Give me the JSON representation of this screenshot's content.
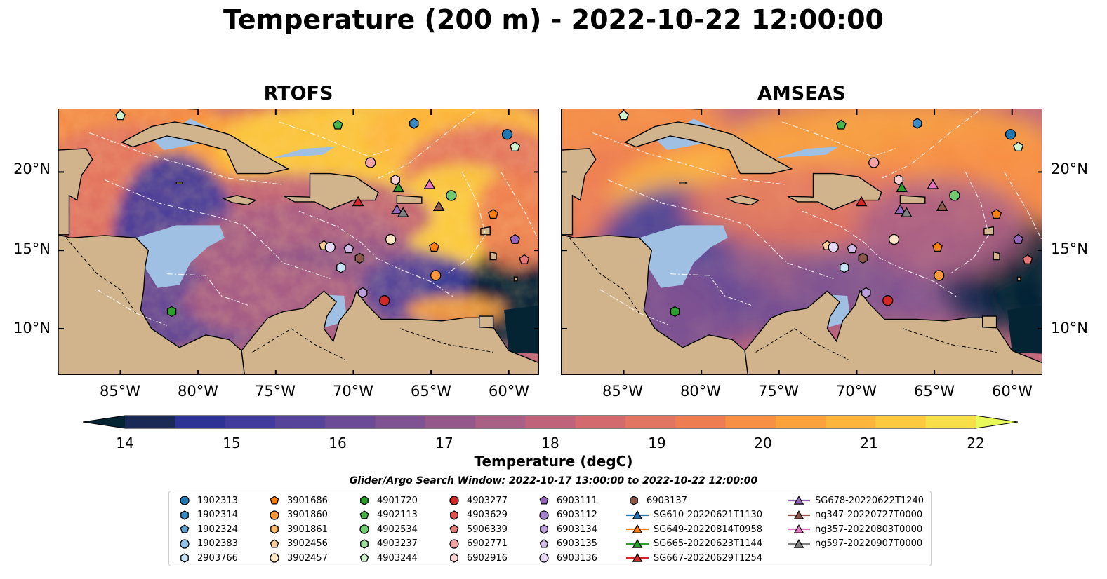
{
  "title": "Temperature (200 m) - 2022-10-22 12:00:00",
  "panels": [
    {
      "title": "RTOFS"
    },
    {
      "title": "AMSEAS"
    }
  ],
  "lat_ticks": [
    "20°N",
    "15°N",
    "10°N"
  ],
  "lon_ticks": [
    "85°W",
    "80°W",
    "75°W",
    "70°W",
    "65°W",
    "60°W"
  ],
  "map_extent": {
    "lon": [
      -89,
      -58
    ],
    "lat": [
      7,
      24
    ]
  },
  "colorbar": {
    "label": "Temperature (degC)",
    "ticks": [
      "14",
      "15",
      "16",
      "17",
      "18",
      "19",
      "20",
      "21",
      "22"
    ],
    "range": [
      14,
      22
    ],
    "extend": "both",
    "colormap": "thermal",
    "colors": [
      "#042333",
      "#1a2a55",
      "#2c3395",
      "#403b9c",
      "#55449a",
      "#6b4b95",
      "#7f5391",
      "#94598a",
      "#aa5f84",
      "#c0637a",
      "#d36b6e",
      "#e27462",
      "#ee7e52",
      "#f78f45",
      "#fba23d",
      "#fdb53c",
      "#fcc93f",
      "#f6df48",
      "#e8fa5b"
    ]
  },
  "search_window": "Glider/Argo Search Window: 2022-10-17 13:00:00 to 2022-10-22 12:00:00",
  "legend": [
    {
      "label": "1902313",
      "marker": "circle",
      "color": "#1f77b4"
    },
    {
      "label": "1902314",
      "marker": "hexagon",
      "color": "#3a8bc4"
    },
    {
      "label": "1902324",
      "marker": "pentagon",
      "color": "#5aa0d3"
    },
    {
      "label": "1902383",
      "marker": "circle",
      "color": "#8ec2e6"
    },
    {
      "label": "2903766",
      "marker": "hexagon",
      "color": "#c6e2f5"
    },
    {
      "label": "3901686",
      "marker": "pentagon",
      "color": "#ff7f0e"
    },
    {
      "label": "3901860",
      "marker": "circle",
      "color": "#fd9a3e"
    },
    {
      "label": "3901861",
      "marker": "hexagon",
      "color": "#fdb86a"
    },
    {
      "label": "3902456",
      "marker": "pentagon",
      "color": "#fdcf98"
    },
    {
      "label": "3902457",
      "marker": "circle",
      "color": "#fee5c6"
    },
    {
      "label": "4901720",
      "marker": "hexagon",
      "color": "#2ca02c"
    },
    {
      "label": "4902113",
      "marker": "pentagon",
      "color": "#48b648"
    },
    {
      "label": "4902534",
      "marker": "circle",
      "color": "#6fcc6f"
    },
    {
      "label": "4903237",
      "marker": "hexagon",
      "color": "#9ede9e"
    },
    {
      "label": "4903244",
      "marker": "pentagon",
      "color": "#cdf2cd"
    },
    {
      "label": "4903277",
      "marker": "circle",
      "color": "#d62728"
    },
    {
      "label": "4903629",
      "marker": "hexagon",
      "color": "#e14f4f"
    },
    {
      "label": "5906339",
      "marker": "pentagon",
      "color": "#ea7777"
    },
    {
      "label": "6902771",
      "marker": "circle",
      "color": "#f2a3a3"
    },
    {
      "label": "6902916",
      "marker": "hexagon",
      "color": "#f9cfcf"
    },
    {
      "label": "6903111",
      "marker": "pentagon",
      "color": "#9467bd"
    },
    {
      "label": "6903112",
      "marker": "circle",
      "color": "#a782cc"
    },
    {
      "label": "6903134",
      "marker": "hexagon",
      "color": "#bc9edb"
    },
    {
      "label": "6903135",
      "marker": "pentagon",
      "color": "#d2bbe9"
    },
    {
      "label": "6903136",
      "marker": "circle",
      "color": "#e8daf6"
    },
    {
      "label": "6903137",
      "marker": "hexagon",
      "color": "#8c564b"
    },
    {
      "label": "SG610-20220621T1130",
      "marker": "triangle-line",
      "color": "#1f77b4"
    },
    {
      "label": "SG649-20220814T0958",
      "marker": "triangle-line",
      "color": "#ff7f0e"
    },
    {
      "label": "SG665-20220623T1144",
      "marker": "triangle-line",
      "color": "#2ca02c"
    },
    {
      "label": "SG667-20220629T1254",
      "marker": "triangle-line",
      "color": "#d62728"
    },
    {
      "label": "SG678-20220622T1240",
      "marker": "triangle-line",
      "color": "#9467bd"
    },
    {
      "label": "ng347-20220727T0000",
      "marker": "triangle-line",
      "color": "#8c564b"
    },
    {
      "label": "ng357-20220803T0000",
      "marker": "triangle-line",
      "color": "#e377c2"
    },
    {
      "label": "ng597-20220907T0000",
      "marker": "triangle-line",
      "color": "#7f7f7f"
    }
  ],
  "observations": [
    {
      "id": "4903244",
      "lon": -85.0,
      "lat": 23.6
    },
    {
      "id": "4902113",
      "lon": -71.0,
      "lat": 23.0
    },
    {
      "id": "1902314",
      "lon": -66.1,
      "lat": 23.1
    },
    {
      "id": "1902313",
      "lon": -60.1,
      "lat": 22.4
    },
    {
      "id": "4903244",
      "lon": -59.6,
      "lat": 21.6
    },
    {
      "id": "6902771",
      "lon": -68.9,
      "lat": 20.6
    },
    {
      "id": "6902916",
      "lon": -67.3,
      "lat": 19.5
    },
    {
      "id": "SG665-20220623T1144",
      "lon": -67.1,
      "lat": 19.0
    },
    {
      "id": "ng357-20220803T0000",
      "lon": -65.1,
      "lat": 19.2
    },
    {
      "id": "4902534",
      "lon": -63.7,
      "lat": 18.5
    },
    {
      "id": "SG667-20220629T1254",
      "lon": -69.7,
      "lat": 18.1
    },
    {
      "id": "ng347-20220727T0000",
      "lon": -64.5,
      "lat": 17.8
    },
    {
      "id": "SG678-20220622T1240",
      "lon": -67.2,
      "lat": 17.6
    },
    {
      "id": "ng597-20220907T0000",
      "lon": -66.8,
      "lat": 17.4
    },
    {
      "id": "3901686",
      "lon": -61.0,
      "lat": 17.3
    },
    {
      "id": "6903111",
      "lon": -59.6,
      "lat": 15.7
    },
    {
      "id": "3902457",
      "lon": -67.6,
      "lat": 15.7
    },
    {
      "id": "3902456",
      "lon": -71.9,
      "lat": 15.3
    },
    {
      "id": "6903136",
      "lon": -71.5,
      "lat": 15.2
    },
    {
      "id": "6903135",
      "lon": -70.3,
      "lat": 15.1
    },
    {
      "id": "3901686",
      "lon": -64.8,
      "lat": 15.2
    },
    {
      "id": "6903137",
      "lon": -69.6,
      "lat": 14.5
    },
    {
      "id": "2903766",
      "lon": -70.8,
      "lat": 13.9
    },
    {
      "id": "5906339",
      "lon": -59.0,
      "lat": 14.4
    },
    {
      "id": "3901860",
      "lon": -64.7,
      "lat": 13.4
    },
    {
      "id": "6903134",
      "lon": -69.4,
      "lat": 12.3
    },
    {
      "id": "4903277",
      "lon": -68.0,
      "lat": 11.8
    },
    {
      "id": "4901720",
      "lon": -81.7,
      "lat": 11.1
    }
  ],
  "colors": {
    "land": "#d2b48c",
    "shallow_water": "#9fbfe3",
    "coast": "#000000",
    "eez": "#ffffff"
  }
}
